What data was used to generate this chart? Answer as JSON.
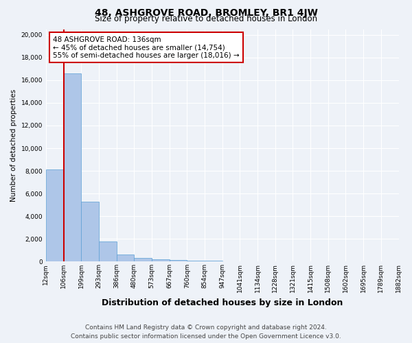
{
  "title": "48, ASHGROVE ROAD, BROMLEY, BR1 4JW",
  "subtitle": "Size of property relative to detached houses in London",
  "xlabel": "Distribution of detached houses by size in London",
  "ylabel": "Number of detached properties",
  "bar_values": [
    8100,
    16600,
    5300,
    1750,
    600,
    300,
    170,
    120,
    80,
    50,
    30,
    20,
    10,
    10,
    5,
    5,
    5,
    5,
    5,
    5
  ],
  "bin_labels": [
    "12sqm",
    "106sqm",
    "199sqm",
    "293sqm",
    "386sqm",
    "480sqm",
    "573sqm",
    "667sqm",
    "760sqm",
    "854sqm",
    "947sqm",
    "1041sqm",
    "1134sqm",
    "1228sqm",
    "1321sqm",
    "1415sqm",
    "1508sqm",
    "1602sqm",
    "1695sqm",
    "1789sqm",
    "1882sqm"
  ],
  "bar_color": "#aec6e8",
  "bar_edge_color": "#5a9fd4",
  "vline_color": "#cc0000",
  "annotation_box_text": "48 ASHGROVE ROAD: 136sqm\n← 45% of detached houses are smaller (14,754)\n55% of semi-detached houses are larger (18,016) →",
  "annotation_box_color": "#ffffff",
  "annotation_box_edge_color": "#cc0000",
  "ylim": [
    0,
    20500
  ],
  "yticks": [
    0,
    2000,
    4000,
    6000,
    8000,
    10000,
    12000,
    14000,
    16000,
    18000,
    20000
  ],
  "footer_line1": "Contains HM Land Registry data © Crown copyright and database right 2024.",
  "footer_line2": "Contains public sector information licensed under the Open Government Licence v3.0.",
  "bg_color": "#eef2f8",
  "grid_color": "#ffffff",
  "title_fontsize": 10,
  "subtitle_fontsize": 8.5,
  "xlabel_fontsize": 9,
  "ylabel_fontsize": 7.5,
  "tick_fontsize": 6.5,
  "annotation_fontsize": 7.5,
  "footer_fontsize": 6.5
}
